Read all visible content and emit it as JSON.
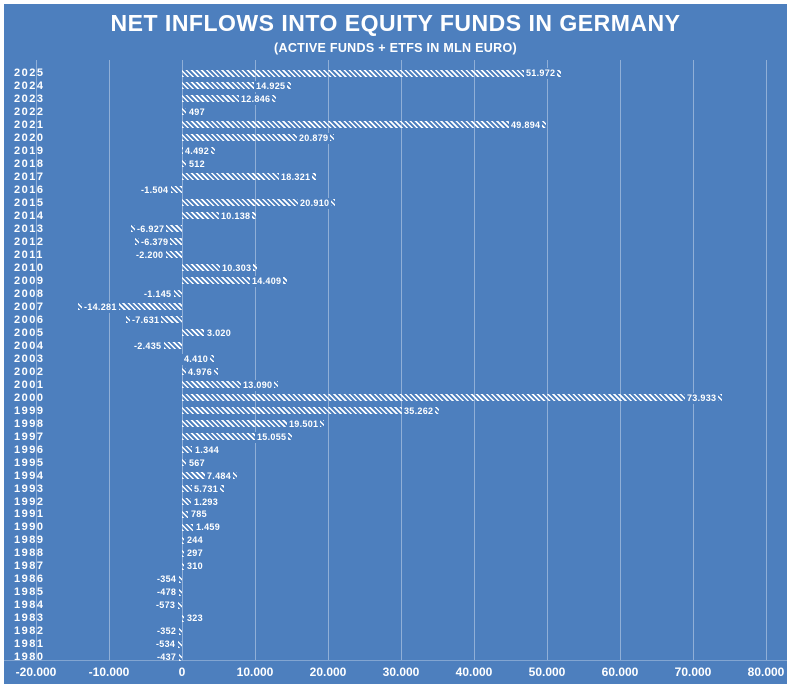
{
  "title": "NET INFLOWS INTO EQUITY FUNDS IN GERMANY",
  "subtitle": "(ACTIVE FUNDS + ETFS IN MLN EURO)",
  "colors": {
    "background": "#4d7fbe",
    "bar_hatch": "#ffffff",
    "gridline": "rgba(255,255,255,0.38)",
    "text": "#ffffff",
    "page_border": "#ffffff"
  },
  "chart_data": {
    "type": "bar",
    "orientation": "horizontal",
    "title": "NET INFLOWS INTO EQUITY FUNDS IN GERMANY",
    "subtitle": "(ACTIVE FUNDS + ETFS IN MLN EURO)",
    "grid": "vertical",
    "bar_style": "white-diagonal-hatch",
    "xlim": [
      -20000,
      80000
    ],
    "x_ticks": [
      -20000,
      -10000,
      0,
      10000,
      20000,
      30000,
      40000,
      50000,
      60000,
      70000,
      80000
    ],
    "x_tick_labels": [
      "-20.000",
      "-10.000",
      "0",
      "10.000",
      "20.000",
      "30.000",
      "40.000",
      "50.000",
      "60.000",
      "70.000",
      "80.000"
    ],
    "categories": [
      "2025",
      "2024",
      "2023",
      "2022",
      "2021",
      "2020",
      "2019",
      "2018",
      "2017",
      "2016",
      "2015",
      "2014",
      "2013",
      "2012",
      "2011",
      "2010",
      "2009",
      "2008",
      "2007",
      "2006",
      "2005",
      "2004",
      "2003",
      "2002",
      "2001",
      "2000",
      "1999",
      "1998",
      "1997",
      "1996",
      "1995",
      "1994",
      "1993",
      "1992",
      "1991",
      "1990",
      "1989",
      "1988",
      "1987",
      "1986",
      "1985",
      "1984",
      "1983",
      "1982",
      "1981",
      "1980"
    ],
    "values": [
      51972,
      14925,
      12846,
      497,
      49894,
      20879,
      4492,
      512,
      18321,
      -1504,
      20910,
      10138,
      -6927,
      -6379,
      -2200,
      10303,
      14409,
      -1145,
      -14281,
      -7631,
      3020,
      -2435,
      4410,
      4976,
      13090,
      73933,
      35262,
      19501,
      15055,
      1344,
      567,
      7484,
      5731,
      1293,
      785,
      1459,
      244,
      297,
      310,
      -354,
      -478,
      -573,
      323,
      -352,
      -534,
      -437
    ],
    "value_labels": [
      "51.972",
      "14.925",
      "12.846",
      "497",
      "49.894",
      "20.879",
      "4.492",
      "512",
      "18.321",
      "-1.504",
      "20.910",
      "10.138",
      "-6.927",
      "-6.379",
      "-2.200",
      "10.303",
      "14.409",
      "-1.145",
      "-14.281",
      "-7.631",
      "3.020",
      "-2.435",
      "4.410",
      "4.976",
      "13.090",
      "73.933",
      "35.262",
      "19.501",
      "15.055",
      "1.344",
      "567",
      "7.484",
      "5.731",
      "1.293",
      "785",
      "1.459",
      "244",
      "297",
      "310",
      "-354",
      "-478",
      "-573",
      "323",
      "-352",
      "-534",
      "-437"
    ]
  }
}
